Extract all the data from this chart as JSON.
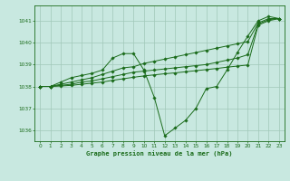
{
  "title": "Graphe pression niveau de la mer (hPa)",
  "background_color": "#c8e8e0",
  "grid_color": "#a0c8b8",
  "line_color": "#1a6b1a",
  "marker_color": "#1a6b1a",
  "xlim": [
    -0.5,
    23.5
  ],
  "ylim": [
    1035.5,
    1041.7
  ],
  "yticks": [
    1036,
    1037,
    1038,
    1039,
    1040,
    1041
  ],
  "xticks": [
    0,
    1,
    2,
    3,
    4,
    5,
    6,
    7,
    8,
    9,
    10,
    11,
    12,
    13,
    14,
    15,
    16,
    17,
    18,
    19,
    20,
    21,
    22,
    23
  ],
  "series": [
    {
      "x": [
        0,
        1,
        2,
        3,
        4,
        5,
        6,
        7,
        8,
        9,
        10,
        11,
        12,
        13,
        14,
        15,
        16,
        17,
        18,
        19,
        20,
        21,
        22,
        23
      ],
      "y": [
        1038.0,
        1038.0,
        1038.2,
        1038.4,
        1038.5,
        1038.6,
        1038.75,
        1039.3,
        1039.5,
        1039.5,
        1038.75,
        1037.5,
        1035.75,
        1036.1,
        1036.45,
        1037.0,
        1037.9,
        1038.0,
        1038.75,
        1039.55,
        1040.3,
        1041.0,
        1041.2,
        1041.1
      ]
    },
    {
      "x": [
        0,
        1,
        2,
        3,
        4,
        5,
        6,
        7,
        8,
        9,
        10,
        11,
        12,
        13,
        14,
        15,
        16,
        17,
        18,
        19,
        20,
        21,
        22,
        23
      ],
      "y": [
        1038.0,
        1038.0,
        1038.1,
        1038.2,
        1038.3,
        1038.4,
        1038.55,
        1038.7,
        1038.85,
        1038.9,
        1039.05,
        1039.15,
        1039.25,
        1039.35,
        1039.45,
        1039.55,
        1039.65,
        1039.75,
        1039.85,
        1039.95,
        1040.05,
        1040.9,
        1041.1,
        1041.1
      ]
    },
    {
      "x": [
        0,
        1,
        2,
        3,
        4,
        5,
        6,
        7,
        8,
        9,
        10,
        11,
        12,
        13,
        14,
        15,
        16,
        17,
        18,
        19,
        20,
        21,
        22,
        23
      ],
      "y": [
        1038.0,
        1038.0,
        1038.05,
        1038.1,
        1038.2,
        1038.25,
        1038.35,
        1038.45,
        1038.55,
        1038.65,
        1038.7,
        1038.75,
        1038.8,
        1038.85,
        1038.9,
        1038.95,
        1039.0,
        1039.1,
        1039.2,
        1039.3,
        1039.45,
        1040.85,
        1041.05,
        1041.1
      ]
    },
    {
      "x": [
        0,
        1,
        2,
        3,
        4,
        5,
        6,
        7,
        8,
        9,
        10,
        11,
        12,
        13,
        14,
        15,
        16,
        17,
        18,
        19,
        20,
        21,
        22,
        23
      ],
      "y": [
        1038.0,
        1038.0,
        1038.02,
        1038.05,
        1038.1,
        1038.15,
        1038.2,
        1038.28,
        1038.35,
        1038.42,
        1038.48,
        1038.53,
        1038.58,
        1038.62,
        1038.67,
        1038.72,
        1038.77,
        1038.82,
        1038.88,
        1038.93,
        1038.98,
        1040.8,
        1041.0,
        1041.1
      ]
    }
  ]
}
